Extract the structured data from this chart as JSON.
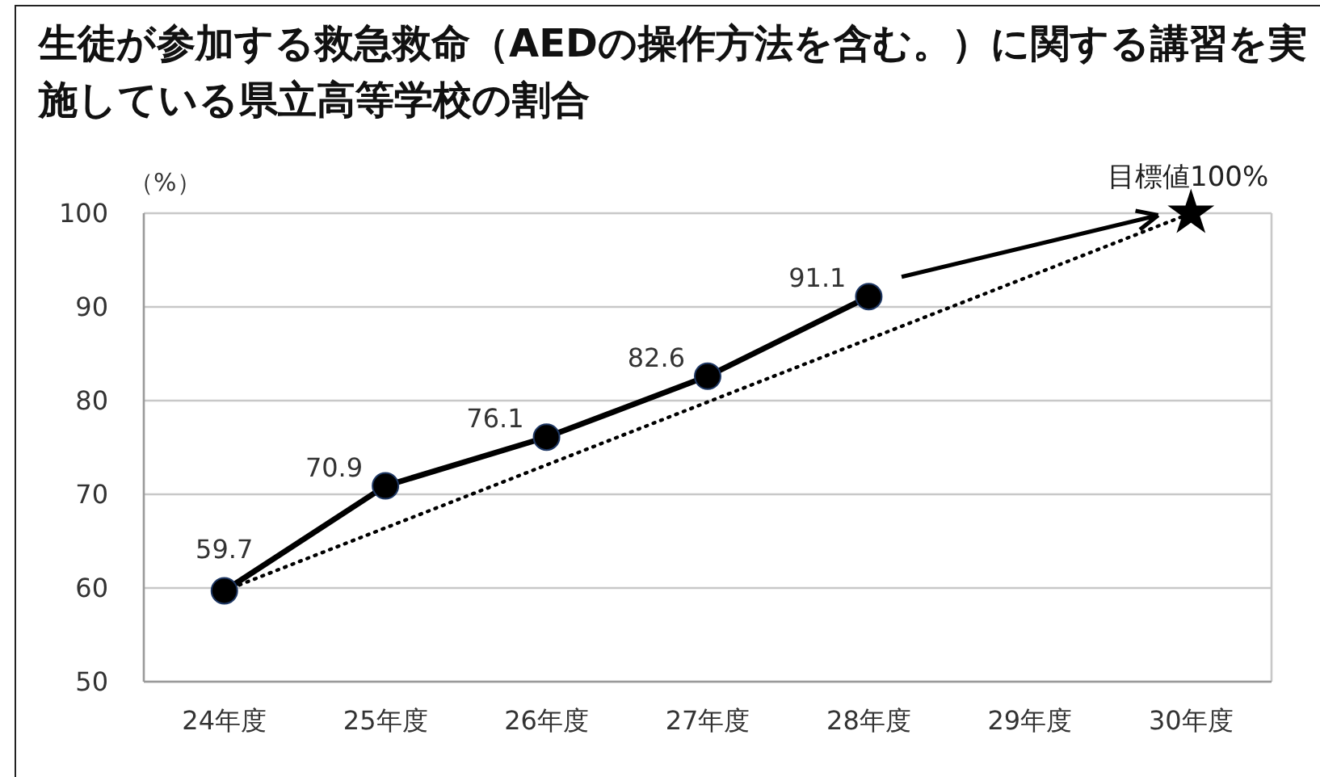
{
  "chart_data": {
    "type": "line",
    "title": "生徒が参加する救急救命（AEDの操作方法を含む。）に関する講習を実施している県立高等学校の割合",
    "ylabel": "（%）",
    "categories": [
      "24年度",
      "25年度",
      "26年度",
      "27年度",
      "28年度",
      "29年度",
      "30年度"
    ],
    "series": [
      {
        "color": "#000000",
        "values": [
          59.7,
          70.9,
          76.1,
          82.6,
          91.1,
          null,
          null
        ],
        "marker": "circle",
        "line_style": "solid",
        "value_labels": [
          "59.7",
          "70.9",
          "76.1",
          "82.6",
          "91.1",
          null,
          null
        ]
      },
      {
        "type": "line",
        "x": [
          "24年度",
          "30年度"
        ],
        "values": [
          59.7,
          100
        ],
        "color": "#000000",
        "line_style": "dotted",
        "marker": "none"
      },
      {
        "type": "scatter",
        "x": [
          "30年度"
        ],
        "values": [
          100
        ],
        "color": "#000000",
        "marker": "star",
        "value_labels": [
          "目標値100%"
        ]
      }
    ],
    "ylim": [
      50,
      100
    ],
    "yticks": [
      50,
      60,
      70,
      80,
      90,
      100
    ],
    "grid": "y",
    "legend": false
  }
}
